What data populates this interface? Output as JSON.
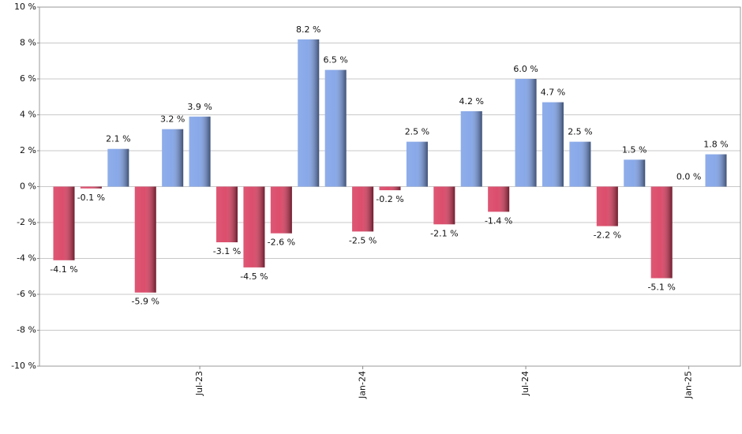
{
  "chart_data": {
    "type": "bar",
    "categories": [
      null,
      null,
      null,
      null,
      null,
      "Jul-23",
      null,
      null,
      null,
      null,
      null,
      "Jan-24",
      null,
      null,
      null,
      null,
      null,
      "Jul-24",
      null,
      null,
      null,
      null,
      null,
      "Jan-25",
      null
    ],
    "values": [
      -4.1,
      -0.1,
      2.1,
      -5.9,
      3.2,
      3.9,
      -3.1,
      -4.5,
      -2.6,
      8.2,
      6.5,
      -2.5,
      -0.2,
      2.5,
      -2.1,
      4.2,
      -1.4,
      6.0,
      4.7,
      2.5,
      -2.2,
      1.5,
      -5.1,
      0.0,
      1.8
    ],
    "value_labels": [
      "-4.1 %",
      "-0.1 %",
      "2.1 %",
      "-5.9 %",
      "3.2 %",
      "3.9 %",
      "-3.1 %",
      "-4.5 %",
      "-2.6 %",
      "8.2 %",
      "6.5 %",
      "-2.5 %",
      "-0.2 %",
      "2.5 %",
      "-2.1 %",
      "4.2 %",
      "-1.4 %",
      "6.0 %",
      "4.7 %",
      "2.5 %",
      "-2.2 %",
      "1.5 %",
      "-5.1 %",
      "0.0 %",
      "1.8 %"
    ],
    "positive_color": "#7b9fe6",
    "negative_color": "#d83a5c",
    "ylim": [
      -10,
      10
    ],
    "yticks": [
      {
        "value": -10,
        "label": "-10 %"
      },
      {
        "value": -8,
        "label": "-8 %"
      },
      {
        "value": -6,
        "label": "-6 %"
      },
      {
        "value": -4,
        "label": "-4 %"
      },
      {
        "value": -2,
        "label": "-2 %"
      },
      {
        "value": 0,
        "label": "0 %"
      },
      {
        "value": 2,
        "label": "2 %"
      },
      {
        "value": 4,
        "label": "4 %"
      },
      {
        "value": 6,
        "label": "6 %"
      },
      {
        "value": 8,
        "label": "8 %"
      },
      {
        "value": 10,
        "label": "10 %"
      }
    ],
    "grid": true
  }
}
